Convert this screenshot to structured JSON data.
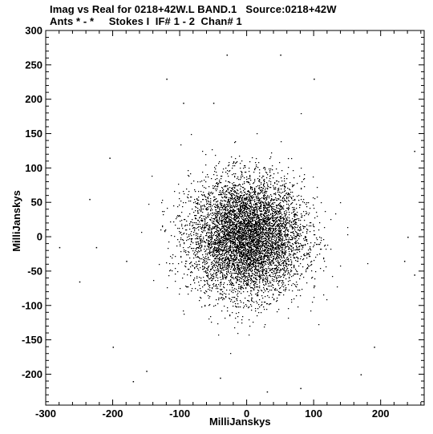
{
  "header": {
    "line1": "Imag vs Real for 0218+42W.L BAND.1   Source:0218+42W",
    "line2": "Ants * - *     Stokes I  IF# 1 - 2  Chan# 1"
  },
  "chart_data": {
    "type": "scatter",
    "xlabel": "MilliJanskys",
    "ylabel": "MilliJanskys",
    "xlim": [
      -300,
      265
    ],
    "ylim": [
      -245,
      300
    ],
    "xticks": [
      -300,
      -200,
      -100,
      0,
      100,
      200
    ],
    "yticks": [
      -200,
      -150,
      -100,
      -50,
      0,
      50,
      100,
      150,
      200,
      250,
      300
    ],
    "grid": false,
    "legend": false,
    "marker_color": "#000000",
    "series": [
      {
        "distribution": "dense gaussian cloud of visibility points",
        "center": [
          0,
          0
        ],
        "approx_sigma": [
          42,
          42
        ],
        "approx_point_count": 30000,
        "outliers": [
          [
            -30,
            265
          ],
          [
            50,
            265
          ],
          [
            -120,
            230
          ],
          [
            100,
            230
          ],
          [
            -50,
            195
          ],
          [
            -95,
            195
          ],
          [
            -205,
            115
          ],
          [
            -235,
            55
          ],
          [
            -280,
            -15
          ],
          [
            -225,
            -15
          ],
          [
            -180,
            -35
          ],
          [
            -250,
            -65
          ],
          [
            -200,
            -160
          ],
          [
            -170,
            -210
          ],
          [
            -150,
            -195
          ],
          [
            250,
            125
          ],
          [
            240,
            0
          ],
          [
            235,
            -35
          ],
          [
            250,
            -55
          ],
          [
            190,
            -160
          ],
          [
            30,
            -225
          ],
          [
            -40,
            -205
          ],
          [
            80,
            -220
          ],
          [
            170,
            -200
          ]
        ]
      }
    ]
  }
}
